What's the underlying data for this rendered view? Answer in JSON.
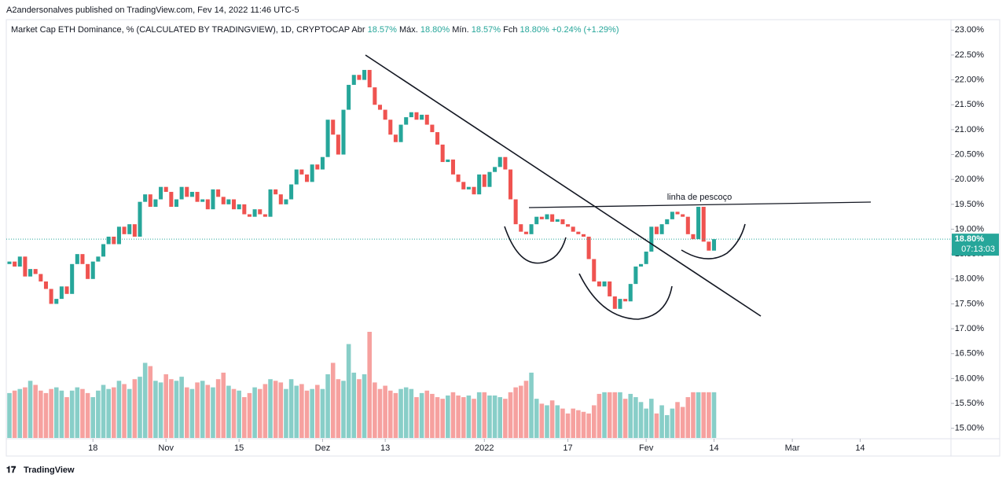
{
  "header": "A2andersonalves published on TradingView.com, Fev 14, 2022 11:46 UTC-5",
  "footer": "TradingView",
  "chart_data": {
    "type": "candlestick",
    "title": "Market Cap ETH Dominance, %  (CALCULATED BY TRADINGVIEW), 1D, CRYPTOCAP",
    "ohlc_labels": [
      {
        "name": "Abr",
        "value": "18.57%"
      },
      {
        "name": "Máx.",
        "value": "18.80%"
      },
      {
        "name": "Mín.",
        "value": "18.57%"
      },
      {
        "name": "Fch",
        "value": "18.80%"
      }
    ],
    "change": "+0.24% (+1.29%)",
    "annotation": "linha de pescoço",
    "last_price_label": "18.80%",
    "countdown": "07:13:03",
    "up_color": "#26a69a",
    "down_color": "#ef5350",
    "open": [
      18.3,
      18.35,
      18.25,
      18.45,
      18.05,
      18.2,
      18.1,
      17.95,
      17.8,
      17.5,
      17.6,
      17.85,
      17.7,
      18.3,
      18.5,
      18.3,
      18.0,
      18.35,
      18.45,
      18.7,
      18.85,
      18.7,
      19.05,
      18.9,
      19.1,
      18.85,
      19.55,
      19.7,
      19.45,
      19.6,
      19.85,
      19.75,
      19.45,
      19.6,
      19.85,
      19.65,
      19.75,
      19.55,
      19.6,
      19.4,
      19.8,
      19.65,
      19.5,
      19.6,
      19.4,
      19.5,
      19.3,
      19.25,
      19.4,
      19.3,
      19.25,
      19.8,
      19.7,
      19.5,
      19.6,
      19.9,
      20.2,
      20.1,
      19.95,
      20.3,
      20.2,
      20.45,
      21.2,
      20.9,
      20.5,
      21.4,
      21.9,
      22.1,
      22.0,
      22.2,
      21.85,
      21.5,
      21.4,
      21.2,
      20.9,
      20.75,
      21.1,
      21.25,
      21.35,
      21.2,
      21.3,
      21.1,
      20.95,
      20.7,
      20.35,
      20.4,
      20.1,
      19.95,
      19.8,
      19.85,
      19.7,
      20.1,
      19.85,
      20.15,
      20.25,
      20.45,
      20.2,
      19.6,
      19.1,
      18.95,
      18.9,
      19.1,
      19.25,
      19.2,
      19.3,
      19.15,
      19.2,
      19.1,
      19.05,
      18.95,
      18.9,
      18.85,
      18.4,
      17.95,
      17.85,
      17.95,
      17.65,
      17.4,
      17.6,
      17.55,
      17.9,
      18.25,
      18.3,
      18.55,
      19.05,
      18.9,
      19.1,
      19.2,
      19.35,
      19.3,
      19.25,
      18.9,
      18.8,
      19.45,
      18.75,
      18.57
    ],
    "close": [
      18.35,
      18.25,
      18.45,
      18.05,
      18.2,
      18.1,
      17.95,
      17.8,
      17.5,
      17.6,
      17.85,
      17.7,
      18.3,
      18.5,
      18.3,
      18.0,
      18.35,
      18.45,
      18.7,
      18.85,
      18.7,
      19.05,
      18.9,
      19.1,
      18.85,
      19.55,
      19.7,
      19.45,
      19.6,
      19.85,
      19.75,
      19.45,
      19.6,
      19.85,
      19.65,
      19.75,
      19.55,
      19.6,
      19.4,
      19.8,
      19.65,
      19.5,
      19.6,
      19.4,
      19.5,
      19.3,
      19.25,
      19.4,
      19.3,
      19.25,
      19.8,
      19.7,
      19.5,
      19.6,
      19.9,
      20.2,
      20.1,
      19.95,
      20.3,
      20.2,
      20.45,
      21.2,
      20.9,
      20.5,
      21.4,
      21.9,
      22.1,
      22.0,
      22.2,
      21.85,
      21.5,
      21.4,
      21.2,
      20.9,
      20.75,
      21.1,
      21.25,
      21.35,
      21.2,
      21.3,
      21.1,
      20.95,
      20.7,
      20.35,
      20.4,
      20.1,
      19.95,
      19.8,
      19.85,
      19.7,
      20.1,
      19.85,
      20.15,
      20.25,
      20.45,
      20.2,
      19.6,
      19.1,
      18.95,
      18.9,
      19.1,
      19.25,
      19.2,
      19.3,
      19.15,
      19.2,
      19.1,
      19.05,
      18.95,
      18.9,
      18.85,
      18.4,
      17.95,
      17.85,
      17.95,
      17.65,
      17.4,
      17.6,
      17.55,
      17.9,
      18.25,
      18.3,
      18.55,
      19.05,
      18.9,
      19.1,
      19.2,
      19.35,
      19.3,
      19.25,
      18.9,
      18.8,
      19.45,
      18.75,
      18.57,
      18.8
    ],
    "volume": [
      55,
      58,
      60,
      62,
      70,
      65,
      58,
      55,
      60,
      62,
      58,
      50,
      58,
      62,
      60,
      55,
      50,
      58,
      65,
      60,
      62,
      70,
      66,
      60,
      72,
      75,
      92,
      88,
      70,
      68,
      78,
      72,
      70,
      75,
      62,
      60,
      68,
      70,
      65,
      62,
      72,
      80,
      64,
      60,
      58,
      50,
      55,
      62,
      60,
      66,
      72,
      70,
      68,
      60,
      72,
      64,
      66,
      58,
      60,
      65,
      60,
      78,
      92,
      72,
      70,
      115,
      80,
      72,
      78,
      130,
      68,
      60,
      64,
      58,
      55,
      60,
      62,
      60,
      50,
      55,
      58,
      54,
      50,
      48,
      52,
      56,
      52,
      50,
      52,
      48,
      56,
      56,
      52,
      52,
      50,
      48,
      56,
      62,
      64,
      70,
      80,
      48,
      42,
      40,
      46,
      40,
      36,
      30,
      36,
      34,
      32,
      30,
      40,
      54,
      56,
      56,
      56,
      56,
      48,
      54,
      50,
      44,
      36,
      48,
      30,
      40,
      28,
      36,
      44,
      38,
      50,
      56,
      56,
      56,
      56,
      56
    ],
    "xlim": [
      -0.6,
      180.4
    ],
    "xticks": [
      {
        "value": 16,
        "label": "18"
      },
      {
        "value": 30,
        "label": "Nov"
      },
      {
        "value": 44,
        "label": "15"
      },
      {
        "value": 60,
        "label": "Dez"
      },
      {
        "value": 72,
        "label": "13"
      },
      {
        "value": 91,
        "label": "2022"
      },
      {
        "value": 107,
        "label": "17"
      },
      {
        "value": 122,
        "label": "Fev"
      },
      {
        "value": 135,
        "label": "14"
      },
      {
        "value": 150,
        "label": "Mar"
      },
      {
        "value": 163,
        "label": "14"
      }
    ],
    "ylim": [
      14.79,
      23.21
    ],
    "yticks": [
      {
        "value": 15,
        "label": "15.00%"
      },
      {
        "value": 15.5,
        "label": "15.50%"
      },
      {
        "value": 16,
        "label": "16.00%"
      },
      {
        "value": 16.5,
        "label": "16.50%"
      },
      {
        "value": 17,
        "label": "17.00%"
      },
      {
        "value": 17.5,
        "label": "17.50%"
      },
      {
        "value": 18,
        "label": "18.00%"
      },
      {
        "value": 18.5,
        "label": "18.50%"
      },
      {
        "value": 19,
        "label": "19.00%"
      },
      {
        "value": 19.5,
        "label": "19.50%"
      },
      {
        "value": 20,
        "label": "20.00%"
      },
      {
        "value": 20.5,
        "label": "20.50%"
      },
      {
        "value": 21,
        "label": "21.00%"
      },
      {
        "value": 21.5,
        "label": "21.50%"
      },
      {
        "value": 22,
        "label": "22.00%"
      },
      {
        "value": 22.5,
        "label": "22.50%"
      },
      {
        "value": 23,
        "label": "23.00%"
      }
    ]
  }
}
